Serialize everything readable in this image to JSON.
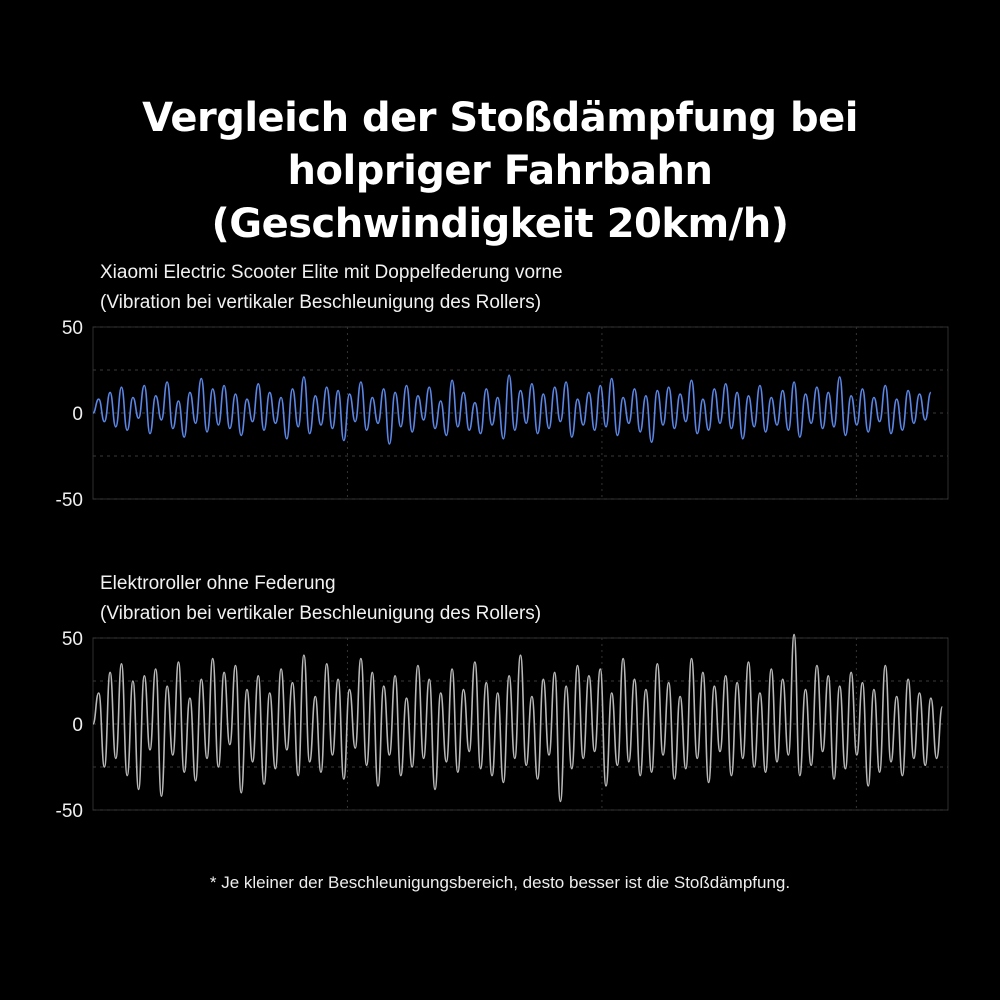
{
  "title_lines": [
    "Vergleich der Stoßdämpfung bei",
    "holpriger Fahrbahn",
    "(Geschwindigkeit 20km/h)"
  ],
  "footnote": "* Je kleiner der Beschleunigungsbereich, desto besser ist die Stoßdämpfung.",
  "colors": {
    "background": "#000000",
    "series_a": "#5b86e5",
    "series_b": "#b8b8b8",
    "grid": "#3a3a3a"
  },
  "chart_data": [
    {
      "type": "line",
      "label_line1": "Xiaomi Electric Scooter Elite mit Doppelfederung vorne",
      "label_line2": "(Vibration bei vertikaler Beschleunigung des Rollers)",
      "ylim": [
        -50,
        50
      ],
      "yticks": [
        "50",
        "0",
        "-50"
      ],
      "grid": true,
      "x_range": [
        0,
        300
      ],
      "series": [
        {
          "x_step": 2,
          "values": [
            0,
            8,
            -5,
            12,
            -8,
            15,
            -10,
            9,
            -3,
            16,
            -12,
            10,
            -4,
            18,
            -9,
            7,
            -14,
            12,
            -6,
            20,
            -11,
            14,
            -7,
            16,
            -9,
            11,
            -13,
            8,
            -5,
            17,
            -10,
            12,
            -6,
            9,
            -15,
            14,
            -8,
            21,
            -12,
            10,
            -7,
            15,
            -9,
            13,
            -16,
            11,
            -5,
            18,
            -10,
            9,
            -6,
            14,
            -18,
            12,
            -8,
            16,
            -11,
            10,
            -4,
            15,
            -9,
            7,
            -13,
            19,
            -8,
            12,
            -10,
            6,
            -12,
            14,
            -7,
            9,
            -15,
            22,
            -10,
            13,
            -6,
            17,
            -12,
            11,
            -9,
            15,
            -5,
            18,
            -14,
            8,
            -7,
            12,
            -10,
            16,
            -8,
            20,
            -13,
            9,
            -6,
            14,
            -11,
            10,
            -17,
            13,
            -7,
            15,
            -9,
            11,
            -5,
            19,
            -12,
            8,
            -10,
            14,
            -6,
            17,
            -9,
            12,
            -15,
            10,
            -8,
            16,
            -11,
            9,
            -7,
            13,
            -10,
            18,
            -14,
            11,
            -6,
            15,
            -9,
            12,
            -8,
            21,
            -13,
            10,
            -7,
            14,
            -11,
            9,
            -5,
            16,
            -12,
            8,
            -10,
            13,
            -6,
            11,
            -4,
            12
          ]
        }
      ]
    },
    {
      "type": "line",
      "label_line1": "Elektroroller ohne Federung",
      "label_line2": "(Vibration bei vertikaler Beschleunigung des Rollers)",
      "ylim": [
        -50,
        50
      ],
      "yticks": [
        "50",
        "0",
        "-50"
      ],
      "grid": true,
      "x_range": [
        0,
        300
      ],
      "series": [
        {
          "x_step": 2,
          "values": [
            0,
            18,
            -25,
            30,
            -20,
            35,
            -30,
            25,
            -38,
            28,
            -15,
            32,
            -42,
            22,
            -18,
            36,
            -28,
            15,
            -33,
            26,
            -20,
            38,
            -25,
            30,
            -12,
            34,
            -40,
            20,
            -22,
            28,
            -35,
            18,
            -26,
            32,
            -15,
            24,
            -30,
            40,
            -22,
            16,
            -28,
            35,
            -18,
            26,
            -32,
            20,
            -14,
            38,
            -24,
            30,
            -36,
            22,
            -18,
            28,
            -30,
            15,
            -25,
            34,
            -20,
            26,
            -38,
            18,
            -22,
            32,
            -28,
            20,
            -16,
            36,
            -26,
            24,
            -30,
            18,
            -34,
            28,
            -20,
            40,
            -24,
            16,
            -32,
            26,
            -18,
            30,
            -45,
            22,
            -26,
            34,
            -20,
            28,
            -16,
            32,
            -36,
            18,
            -24,
            38,
            -22,
            26,
            -30,
            20,
            -28,
            35,
            -18,
            24,
            -32,
            16,
            -26,
            38,
            -20,
            30,
            -34,
            22,
            -16,
            28,
            -30,
            24,
            -20,
            36,
            -25,
            18,
            -28,
            32,
            -22,
            26,
            -18,
            52,
            -30,
            20,
            -24,
            34,
            -16,
            28,
            -32,
            22,
            -26,
            30,
            -18,
            24,
            -36,
            20,
            -28,
            34,
            -22,
            16,
            -30,
            26,
            -20,
            18,
            -24,
            15,
            -20,
            10
          ]
        }
      ]
    }
  ]
}
